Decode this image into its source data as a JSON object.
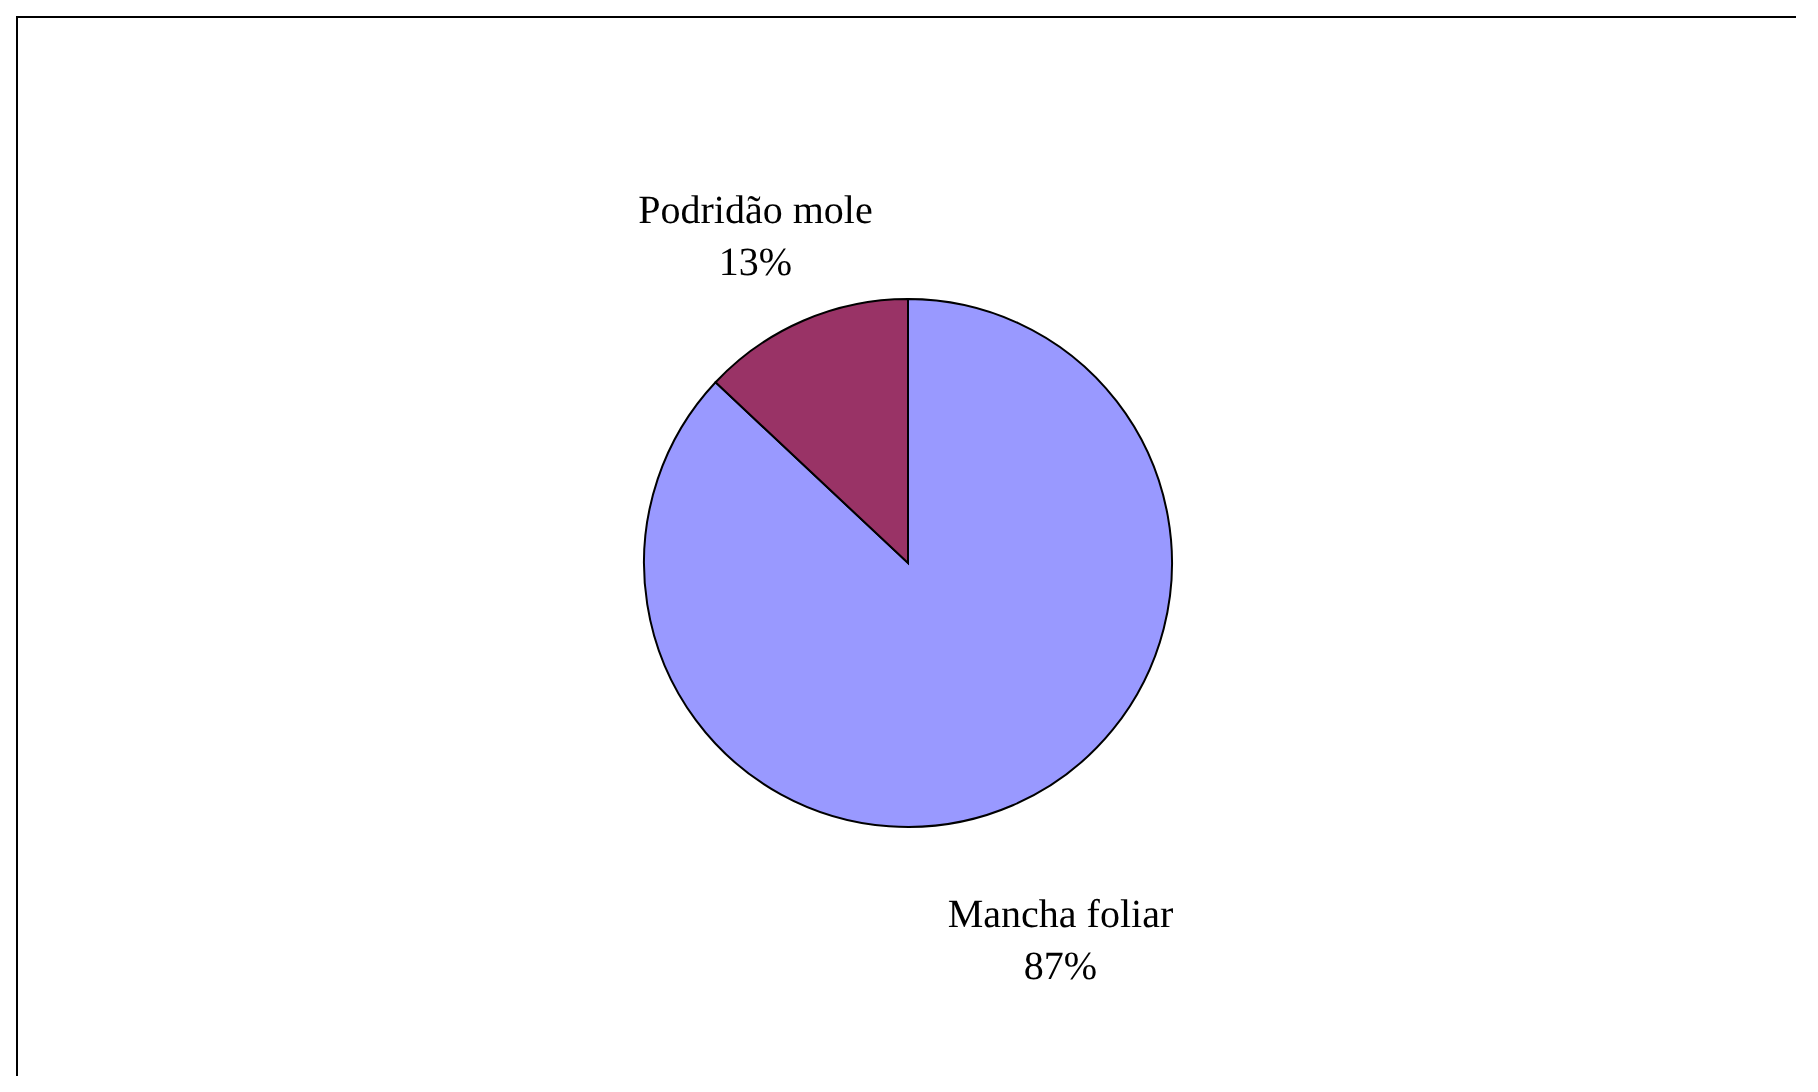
{
  "chart_data": {
    "type": "pie",
    "categories": [
      "Mancha foliar",
      "Podridão mole"
    ],
    "values": [
      87,
      13
    ],
    "colors": [
      "#9999ff",
      "#993366"
    ],
    "value_labels": [
      "87%",
      "13%"
    ]
  }
}
